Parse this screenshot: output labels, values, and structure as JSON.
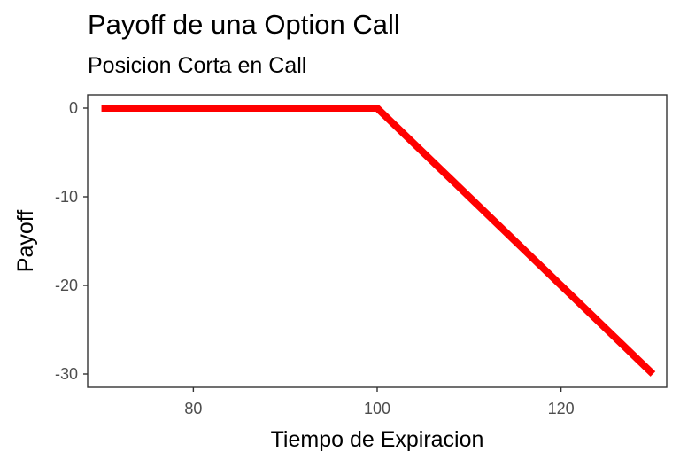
{
  "chart_data": {
    "type": "line",
    "title": "Payoff de una Option Call",
    "subtitle": "Posicion Corta en Call",
    "xlabel": "Tiempo de Expiracion",
    "ylabel": "Payoff",
    "xlim": [
      68.5,
      131.5
    ],
    "ylim": [
      -31.5,
      1.5
    ],
    "x_ticks": [
      80,
      100,
      120
    ],
    "y_ticks": [
      0,
      -10,
      -20,
      -30
    ],
    "grid": false,
    "legend": "none",
    "series": [
      {
        "color": "#ff0000",
        "x": [
          70,
          100,
          130
        ],
        "y": [
          0,
          0,
          -30
        ]
      }
    ]
  }
}
